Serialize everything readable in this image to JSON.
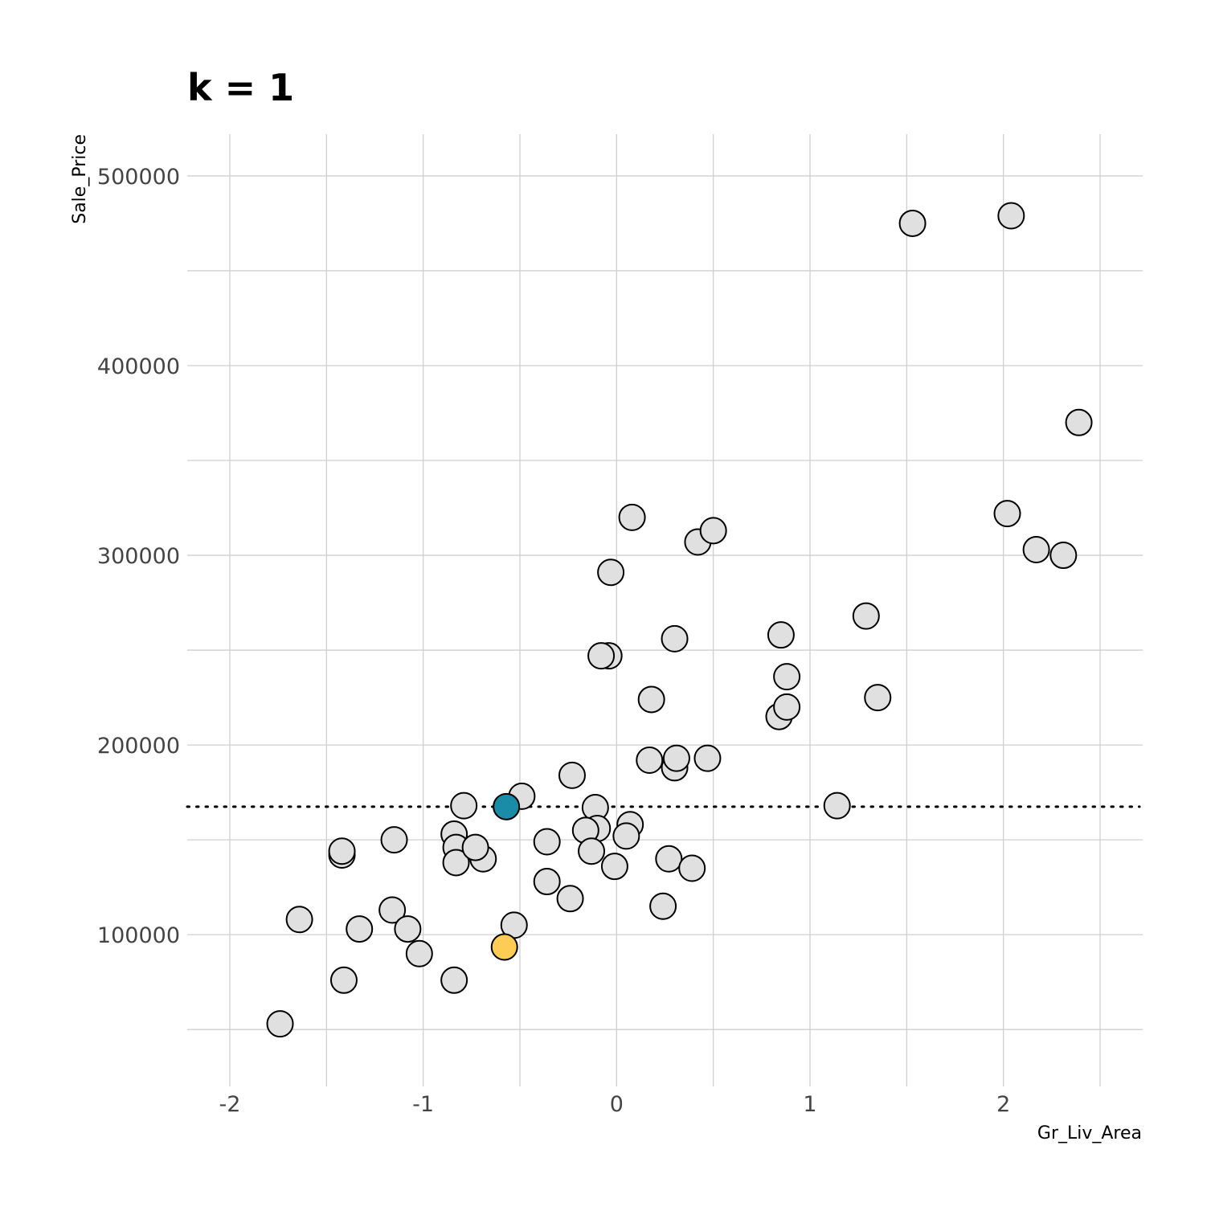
{
  "chart_data": {
    "type": "scatter",
    "title": "k = 1",
    "xlabel": "Gr_Liv_Area",
    "ylabel": "Sale_Price",
    "xlim": [
      -2.22,
      2.72
    ],
    "ylim": [
      20000,
      522000
    ],
    "x_ticks": [
      -2,
      -1,
      0,
      1,
      2
    ],
    "x_tick_labels": [
      "-2",
      "-1",
      "0",
      "1",
      "2"
    ],
    "y_ticks": [
      100000,
      200000,
      300000,
      400000,
      500000
    ],
    "y_tick_labels": [
      "100000",
      "200000",
      "300000",
      "400000",
      "500000"
    ],
    "x_minor": [
      -1.5,
      -0.5,
      0.5,
      1.5,
      2.5
    ],
    "y_minor": [
      50000,
      150000,
      250000,
      350000,
      450000
    ],
    "grid": true,
    "reference_line": {
      "y": 167500,
      "style": "dotted",
      "color": "#000000"
    },
    "colors": {
      "point_fill": "#e0e0e0",
      "target_fill": "#fccc55",
      "neighbor_fill": "#1a8ca8",
      "outline": "#000000",
      "grid": "#cfcfcf"
    },
    "points": [
      {
        "x": -1.74,
        "y": 53000
      },
      {
        "x": -1.64,
        "y": 108000
      },
      {
        "x": -1.41,
        "y": 76000
      },
      {
        "x": -1.42,
        "y": 142000
      },
      {
        "x": -1.42,
        "y": 144000
      },
      {
        "x": -1.33,
        "y": 103000
      },
      {
        "x": -1.15,
        "y": 150000
      },
      {
        "x": -1.16,
        "y": 113000
      },
      {
        "x": -1.08,
        "y": 103000
      },
      {
        "x": -1.02,
        "y": 90000
      },
      {
        "x": -0.84,
        "y": 76000
      },
      {
        "x": -0.84,
        "y": 153000
      },
      {
        "x": -0.83,
        "y": 146000
      },
      {
        "x": -0.83,
        "y": 138000
      },
      {
        "x": -0.79,
        "y": 168000
      },
      {
        "x": -0.69,
        "y": 140000
      },
      {
        "x": -0.73,
        "y": 146000
      },
      {
        "x": -0.53,
        "y": 105000
      },
      {
        "x": -0.49,
        "y": 173000
      },
      {
        "x": -0.36,
        "y": 149000
      },
      {
        "x": -0.36,
        "y": 128000
      },
      {
        "x": -0.24,
        "y": 119000
      },
      {
        "x": -0.23,
        "y": 184000
      },
      {
        "x": -0.11,
        "y": 167000
      },
      {
        "x": -0.1,
        "y": 156000
      },
      {
        "x": -0.16,
        "y": 155000
      },
      {
        "x": -0.13,
        "y": 144000
      },
      {
        "x": -0.04,
        "y": 247000
      },
      {
        "x": -0.08,
        "y": 247000
      },
      {
        "x": -0.03,
        "y": 291000
      },
      {
        "x": -0.01,
        "y": 136000
      },
      {
        "x": 0.07,
        "y": 158000
      },
      {
        "x": 0.05,
        "y": 152000
      },
      {
        "x": 0.08,
        "y": 320000
      },
      {
        "x": 0.17,
        "y": 192000
      },
      {
        "x": 0.18,
        "y": 224000
      },
      {
        "x": 0.24,
        "y": 115000
      },
      {
        "x": 0.27,
        "y": 140000
      },
      {
        "x": 0.3,
        "y": 188000
      },
      {
        "x": 0.31,
        "y": 193000
      },
      {
        "x": 0.3,
        "y": 256000
      },
      {
        "x": 0.39,
        "y": 135000
      },
      {
        "x": 0.42,
        "y": 307000
      },
      {
        "x": 0.5,
        "y": 313000
      },
      {
        "x": 0.47,
        "y": 193000
      },
      {
        "x": 0.84,
        "y": 215000
      },
      {
        "x": 0.85,
        "y": 258000
      },
      {
        "x": 0.88,
        "y": 236000
      },
      {
        "x": 0.88,
        "y": 220000
      },
      {
        "x": 1.14,
        "y": 168000
      },
      {
        "x": 1.29,
        "y": 268000
      },
      {
        "x": 1.35,
        "y": 225000
      },
      {
        "x": 1.53,
        "y": 475000
      },
      {
        "x": 2.02,
        "y": 322000
      },
      {
        "x": 2.04,
        "y": 479000
      },
      {
        "x": 2.17,
        "y": 303000
      },
      {
        "x": 2.31,
        "y": 300000
      },
      {
        "x": 2.39,
        "y": 370000
      },
      {
        "x": -0.57,
        "y": 167500,
        "role": "neighbor"
      },
      {
        "x": -0.58,
        "y": 93500,
        "role": "target"
      }
    ]
  }
}
